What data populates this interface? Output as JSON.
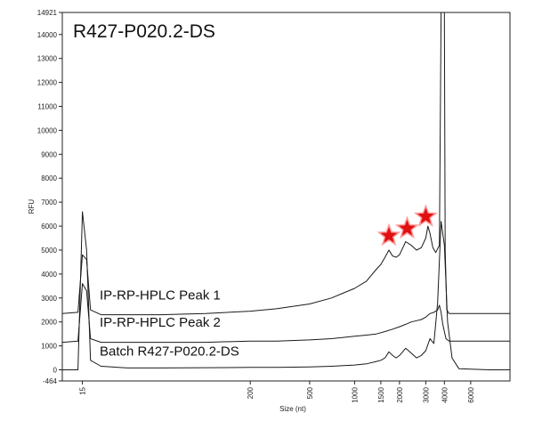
{
  "chart_data": {
    "type": "line",
    "title": "R427-P020.2-DS",
    "xlabel": "Size (nt)",
    "ylabel": "RFU",
    "scale": "log-like ladder",
    "x_ticks": [
      "15",
      "200",
      "500",
      "1000",
      "1500",
      "2000",
      "3000",
      "4000",
      "6000"
    ],
    "x_tick_values": [
      15,
      200,
      500,
      1000,
      1500,
      2000,
      3000,
      4000,
      6000
    ],
    "y_ticks": [
      "-464",
      "0",
      "1000",
      "2000",
      "3000",
      "4000",
      "5000",
      "6000",
      "7000",
      "8000",
      "9000",
      "10000",
      "11000",
      "12000",
      "13000",
      "14000",
      "14921"
    ],
    "y_tick_values": [
      -464,
      0,
      1000,
      2000,
      3000,
      4000,
      5000,
      6000,
      7000,
      8000,
      9000,
      10000,
      11000,
      12000,
      13000,
      14000,
      14921
    ],
    "ylim": [
      -464,
      14921
    ],
    "x_range": [
      11,
      11000
    ],
    "series": [
      {
        "name": "IP-RP-HPLC  Peak 1",
        "x": [
          11,
          14,
          15,
          16,
          17,
          20,
          30,
          50,
          100,
          200,
          300,
          500,
          700,
          1000,
          1200,
          1400,
          1500,
          1600,
          1700,
          1800,
          1900,
          2000,
          2200,
          2400,
          2600,
          2800,
          3000,
          3100,
          3200,
          3350,
          3500,
          3700,
          3800,
          3900,
          4000,
          4050,
          4150,
          4300,
          4600,
          5000,
          6000,
          8000,
          11000
        ],
        "values": [
          2350,
          2400,
          4800,
          4600,
          2500,
          2300,
          2300,
          2300,
          2350,
          2450,
          2550,
          2750,
          3000,
          3400,
          3700,
          4200,
          4400,
          4700,
          5000,
          4750,
          4700,
          4800,
          5350,
          5200,
          5000,
          5100,
          5500,
          6000,
          5700,
          5100,
          4900,
          5200,
          14921,
          14921,
          14921,
          5000,
          2500,
          2350,
          2350,
          2350,
          2350,
          2350,
          2350
        ]
      },
      {
        "name": "IP-RP-HPLC  Peak 2",
        "x": [
          11,
          14,
          15,
          16,
          17,
          20,
          30,
          50,
          100,
          200,
          300,
          500,
          700,
          1000,
          1200,
          1400,
          1600,
          1800,
          2000,
          2200,
          2400,
          2600,
          2800,
          3000,
          3200,
          3400,
          3600,
          3700,
          3800,
          3900,
          4000,
          4100,
          4300,
          5000,
          8000,
          11000
        ],
        "values": [
          1150,
          1200,
          3600,
          3300,
          1300,
          1150,
          1150,
          1150,
          1150,
          1200,
          1200,
          1250,
          1300,
          1400,
          1450,
          1500,
          1600,
          1700,
          1800,
          1900,
          2000,
          2050,
          2100,
          2200,
          2350,
          2400,
          2500,
          2700,
          2400,
          1900,
          1600,
          1300,
          1200,
          1200,
          1200,
          1200
        ]
      },
      {
        "name": "Batch R427-P020.2-DS",
        "x": [
          11,
          14,
          15,
          16,
          17,
          20,
          30,
          50,
          100,
          200,
          300,
          500,
          700,
          1000,
          1200,
          1400,
          1500,
          1600,
          1700,
          1800,
          1900,
          2000,
          2200,
          2400,
          2600,
          2800,
          3000,
          3200,
          3400,
          3600,
          3800,
          4000,
          4200,
          4500,
          5000,
          8000,
          11000
        ],
        "values": [
          0,
          0,
          6600,
          5000,
          400,
          150,
          80,
          80,
          90,
          100,
          100,
          120,
          150,
          200,
          250,
          350,
          400,
          500,
          750,
          600,
          500,
          600,
          900,
          700,
          500,
          600,
          800,
          1300,
          1100,
          2800,
          6200,
          5200,
          2000,
          500,
          50,
          0,
          0
        ]
      }
    ],
    "markers": [
      {
        "name": "star-marker",
        "x": 1700,
        "y": 5600
      },
      {
        "name": "star-marker",
        "x": 2250,
        "y": 5900
      },
      {
        "name": "star-marker",
        "x": 3000,
        "y": 6400
      }
    ],
    "series_label_x": [
      112,
      112,
      112
    ],
    "grid": false,
    "colors": {
      "line": "#1a1a1a",
      "star": "#e01010",
      "star_edge": "#ff9a9a",
      "axis": "#222222"
    }
  }
}
